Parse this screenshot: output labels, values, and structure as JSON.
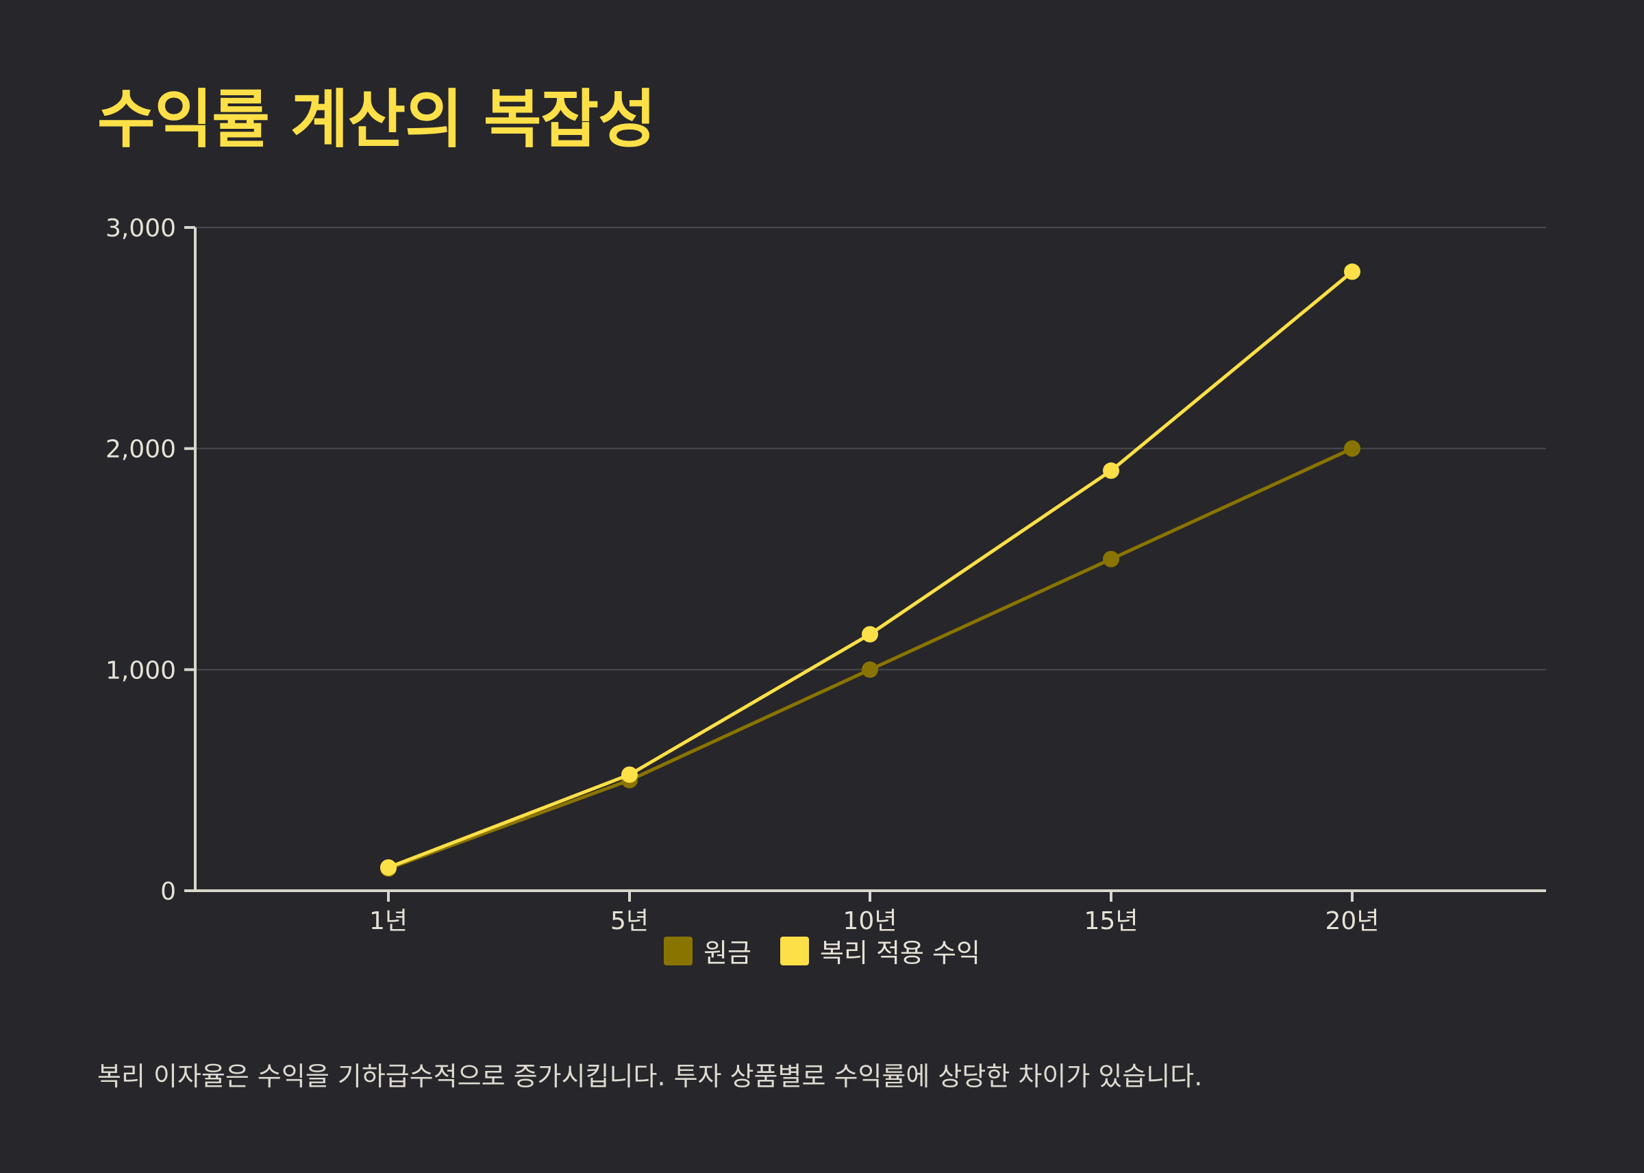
{
  "title": "수익률 계산의 복잡성",
  "caption": "복리 이자율은 수익을 기하급수적으로 증가시킵니다. 투자 상품별로 수익률에 상당한 차이가 있습니다.",
  "colors": {
    "background": "#26262b",
    "title": "#fde047",
    "axis": "#d9d6cc",
    "grid": "#4a4a50",
    "tick_text": "#e6e2d6"
  },
  "chart_data": {
    "type": "line",
    "categories": [
      "1년",
      "5년",
      "10년",
      "15년",
      "20년"
    ],
    "series": [
      {
        "name": "원금",
        "values": [
          100,
          500,
          1000,
          1500,
          2000
        ],
        "color": "#8a7400"
      },
      {
        "name": "복리 적용 수익",
        "values": [
          105,
          525,
          1160,
          1900,
          2800
        ],
        "color": "#fde047"
      }
    ],
    "ylim": [
      0,
      3000
    ],
    "yticks": [
      0,
      1000,
      2000,
      3000
    ],
    "ytick_labels": [
      "0",
      "1,000",
      "2,000",
      "3,000"
    ],
    "grid": true,
    "legend_position": "bottom-center",
    "xlabel": "",
    "ylabel": ""
  }
}
